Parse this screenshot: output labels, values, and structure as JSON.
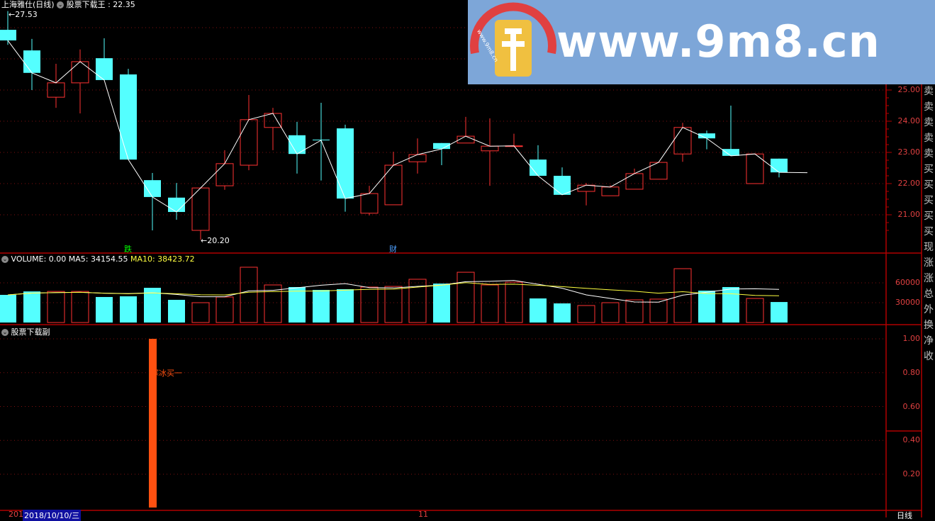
{
  "header": {
    "stock_name": "上海雅仕(日线)",
    "indicator_name": "股票下载王",
    "indicator_value": "22.35"
  },
  "main_chart": {
    "high_label": "27.53",
    "low_label": "20.20",
    "price_ticks": [
      "25.00",
      "24.00",
      "23.00",
      "22.00",
      "21.00"
    ],
    "signals": [
      {
        "text": "跌",
        "candle": 5,
        "color": "#00ff00"
      },
      {
        "text": "财",
        "candle": 16,
        "color": "#4ea0ff"
      }
    ],
    "candles": [
      [
        26.93,
        27.53,
        26.45,
        26.59
      ],
      [
        26.27,
        26.64,
        25.0,
        25.55
      ],
      [
        24.77,
        25.84,
        24.43,
        25.23
      ],
      [
        25.23,
        26.3,
        24.25,
        25.91
      ],
      [
        26.02,
        26.66,
        25.32,
        25.32
      ],
      [
        25.5,
        25.68,
        22.77,
        22.77
      ],
      [
        22.11,
        22.34,
        20.5,
        21.57
      ],
      [
        21.55,
        22.02,
        20.84,
        21.09
      ],
      [
        20.5,
        21.86,
        20.2,
        21.86
      ],
      [
        21.93,
        23.07,
        21.8,
        22.64
      ],
      [
        22.59,
        24.84,
        22.43,
        24.05
      ],
      [
        23.8,
        24.43,
        23.07,
        24.25
      ],
      [
        23.55,
        23.98,
        22.32,
        22.95
      ],
      [
        23.41,
        24.59,
        22.1,
        23.39
      ],
      [
        23.77,
        23.89,
        21.1,
        21.52
      ],
      [
        21.05,
        21.93,
        20.98,
        21.68
      ],
      [
        21.32,
        23.02,
        21.32,
        22.59
      ],
      [
        22.7,
        23.45,
        22.32,
        22.93
      ],
      [
        23.3,
        23.3,
        22.59,
        23.11
      ],
      [
        23.3,
        24.14,
        23.3,
        23.52
      ],
      [
        23.05,
        24.09,
        21.93,
        23.2
      ],
      [
        23.2,
        23.6,
        23.2,
        23.21
      ],
      [
        22.77,
        23.23,
        22.25,
        22.25
      ],
      [
        22.25,
        22.52,
        21.64,
        21.64
      ],
      [
        21.75,
        22.02,
        21.3,
        21.95
      ],
      [
        21.61,
        21.95,
        21.61,
        21.89
      ],
      [
        21.82,
        22.48,
        21.82,
        22.32
      ],
      [
        22.14,
        22.68,
        22.14,
        22.68
      ],
      [
        22.95,
        23.95,
        22.7,
        23.8
      ],
      [
        23.61,
        23.7,
        23.1,
        23.45
      ],
      [
        23.11,
        24.5,
        22.89,
        22.89
      ],
      [
        22.0,
        22.95,
        22.0,
        22.95
      ],
      [
        22.8,
        22.8,
        22.2,
        22.36
      ]
    ],
    "last_price": 22.35
  },
  "volume_panel": {
    "label": "VOLUME: 0.00",
    "ma5_label": "MA5: 34154.55",
    "ma10_label": "MA10: 38423.72",
    "ticks": [
      "60000",
      "30000"
    ],
    "values": [
      41800,
      47000,
      47000,
      47000,
      38600,
      39600,
      52500,
      34300,
      30000,
      38600,
      83600,
      56800,
      53600,
      49300,
      50400,
      53600,
      54600,
      65400,
      58900,
      76000,
      56800,
      61000,
      36400,
      28900,
      25700,
      30000,
      34300,
      35400,
      81400,
      48200,
      53600,
      36400,
      31000,
      0
    ],
    "ma5_color": "#ffffff",
    "ma10_color": "#ffff40"
  },
  "sub_panel": {
    "label": "股票下载副",
    "ticks": [
      "1.00",
      "0.80",
      "0.60",
      "0.40",
      "0.20"
    ],
    "signal_text": "寒冰买一",
    "signal_candle": 6,
    "signal_value": 1.0,
    "signal_color": "#ff5010"
  },
  "right_column": [
    "卖",
    "卖",
    "卖",
    "卖",
    "卖",
    "买",
    "买",
    "买",
    "买",
    "买",
    "现",
    "涨",
    "涨",
    "总",
    "外",
    "换",
    "净",
    "收"
  ],
  "footer": {
    "year_prefix": "201",
    "date": "2018/10/10/三",
    "month_mark": "11",
    "period": "日线"
  },
  "watermark": {
    "text": "www.9m8.cn",
    "small": "www.9m8.cn"
  },
  "colors": {
    "up": "#ff3232",
    "down": "#54ffff",
    "axis": "#b00000",
    "grid": "#801010"
  }
}
